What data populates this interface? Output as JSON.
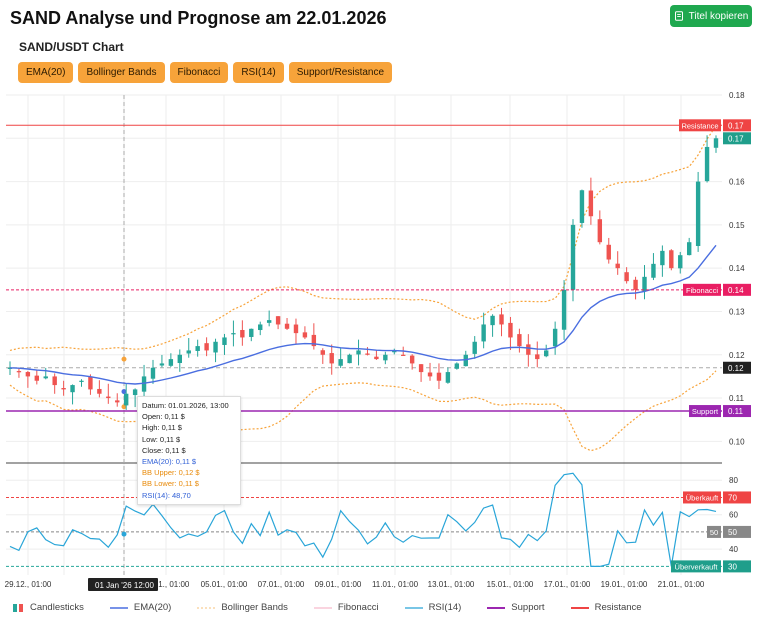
{
  "header": {
    "title": "SAND Analyse und Prognose am 22.01.2026",
    "copy_button": "Titel kopieren"
  },
  "chart_title": "SAND/USDT Chart",
  "toolbar": [
    "EMA(20)",
    "Bollinger Bands",
    "Fibonacci",
    "RSI(14)",
    "Support/Resistance"
  ],
  "price_axis_ticks": [
    "0.18",
    "0.17",
    "0.16",
    "0.15",
    "0.14",
    "0.13",
    "0.12",
    "0.11",
    "0.10"
  ],
  "rsi_axis_ticks": [
    "80",
    "60",
    "40"
  ],
  "time_axis_ticks": [
    "29.12., 01:00",
    "01 Jan '26",
    "12:00",
    "03.01., 01:00",
    "05.01., 01:00",
    "07.01., 01:00",
    "09.01., 01:00",
    "11.01., 01:00",
    "13.01., 01:00",
    "15.01., 01:00",
    "17.01., 01:00",
    "19.01., 01:00",
    "21.01., 01:00"
  ],
  "level_labels": {
    "resistance": {
      "label": "Resistance",
      "value": "0.17"
    },
    "last_price": {
      "value": "0.17"
    },
    "fibonacci": {
      "label": "Fibonacci",
      "value": "0.14"
    },
    "crosshair_price": {
      "value": "0.12"
    },
    "support": {
      "label": "Support",
      "value": "0.11"
    },
    "overbought": {
      "label": "Überkauft",
      "value": "70"
    },
    "mid": {
      "value": "50"
    },
    "mid2": {
      "value": "50"
    },
    "oversold": {
      "label": "Überverkauft",
      "value": "30"
    }
  },
  "tooltip": {
    "datum": "Datum: 01.01.2026, 13:00",
    "open": "Open: 0,11 $",
    "high": "High: 0,11 $",
    "low": "Low: 0,11 $",
    "close": "Close: 0,11 $",
    "ema": "EMA(20): 0,11 $",
    "bb_upper": "BB Upper: 0,12 $",
    "bb_lower": "BB Lower: 0,11 $",
    "rsi": "RSI(14): 48,70"
  },
  "legend": [
    "Candlesticks",
    "EMA(20)",
    "Bollinger Bands",
    "Fibonacci",
    "RSI(14)",
    "Support",
    "Resistance"
  ],
  "colors": {
    "up": "#26a69a",
    "down": "#ef5350",
    "ema": "#4a6ee0",
    "bollinger": "#f7a33a",
    "resistance": "#ef4444",
    "support": "#9c27b0",
    "rsi": "#29a5d8",
    "fibonacci": "#e91e63",
    "button": "#f7a33a",
    "copy": "#1fa84f"
  },
  "chart_data": {
    "type": "candlestick",
    "price_range": [
      0.095,
      0.18
    ],
    "rsi_range": [
      25,
      90
    ],
    "levels": {
      "resistance": 0.173,
      "fibonacci": 0.135,
      "support": 0.107
    },
    "candles_close_path": [
      0.117,
      0.116,
      0.115,
      0.114,
      0.115,
      0.113,
      0.112,
      0.113,
      0.114,
      0.112,
      0.111,
      0.11,
      0.109,
      0.111,
      0.112,
      0.115,
      0.117,
      0.118,
      0.119,
      0.12,
      0.121,
      0.122,
      0.121,
      0.123,
      0.124,
      0.125,
      0.124,
      0.126,
      0.127,
      0.128,
      0.127,
      0.126,
      0.125,
      0.124,
      0.122,
      0.12,
      0.118,
      0.119,
      0.12,
      0.121,
      0.12,
      0.119,
      0.12,
      0.121,
      0.12,
      0.118,
      0.116,
      0.115,
      0.114,
      0.116,
      0.118,
      0.12,
      0.123,
      0.127,
      0.129,
      0.127,
      0.124,
      0.122,
      0.12,
      0.119,
      0.121,
      0.126,
      0.135,
      0.15,
      0.158,
      0.152,
      0.146,
      0.142,
      0.14,
      0.137,
      0.135,
      0.138,
      0.141,
      0.144,
      0.14,
      0.143,
      0.146,
      0.16,
      0.168,
      0.17
    ]
  }
}
